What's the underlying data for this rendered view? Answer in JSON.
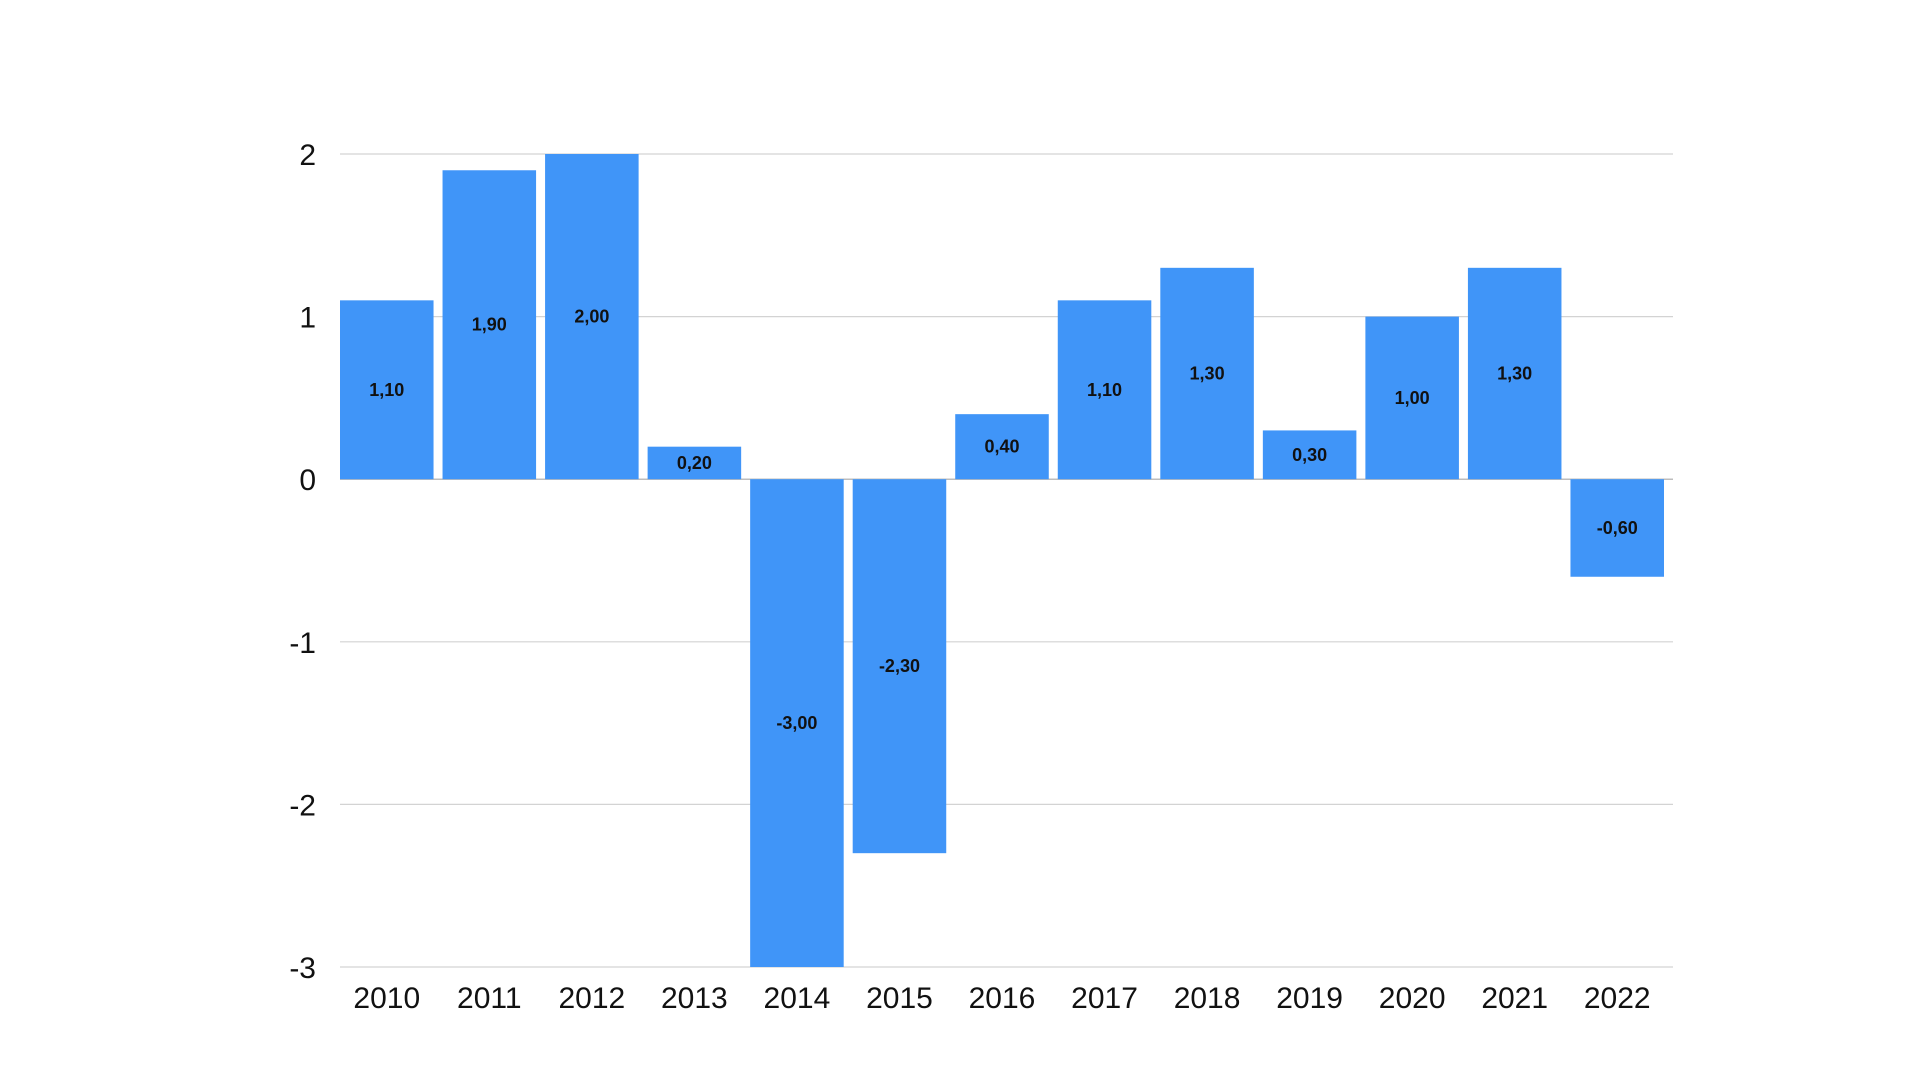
{
  "colors": {
    "bar": "#4095F8",
    "grid": "#d3d3d3",
    "text": "#111111",
    "background": "#ffffff"
  },
  "chart_data": {
    "type": "bar",
    "title": "",
    "xlabel": "",
    "ylabel": "",
    "categories": [
      "2010",
      "2011",
      "2012",
      "2013",
      "2014",
      "2015",
      "2016",
      "2017",
      "2018",
      "2019",
      "2020",
      "2021",
      "2022"
    ],
    "values": [
      1.1,
      1.9,
      2.0,
      0.2,
      -3.0,
      -2.3,
      0.4,
      1.1,
      1.3,
      0.3,
      1.0,
      1.3,
      -0.6
    ],
    "data_labels": [
      "1,10",
      "1,90",
      "2,00",
      "0,20",
      "-3,00",
      "-2,30",
      "0,40",
      "1,10",
      "1,30",
      "0,30",
      "1,00",
      "1,30",
      "-0,60"
    ],
    "yticks": [
      2,
      1,
      0,
      -1,
      -2,
      -3
    ],
    "ytick_labels": [
      "2",
      "1",
      "0",
      "-1",
      "-2",
      "-3"
    ],
    "ylim": [
      -3,
      2
    ],
    "grid": true,
    "legend": "none"
  }
}
